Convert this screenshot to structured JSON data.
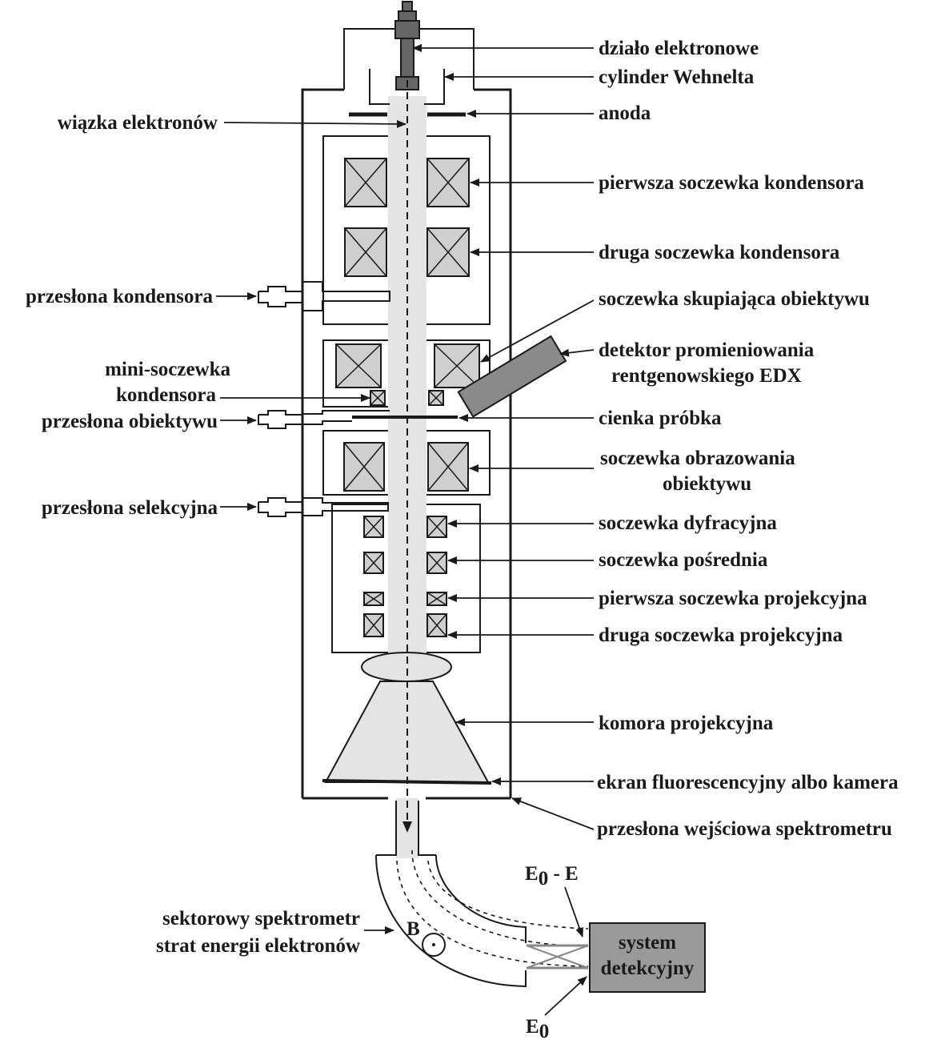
{
  "labels": {
    "gun": "działo elektronowe",
    "wehnelt": "cylinder Wehnelta",
    "beam": "wiązka elektronów",
    "anode": "anoda",
    "condenser1": "pierwsza soczewka kondensora",
    "condenser2": "druga soczewka kondensora",
    "condenser_aperture": "przesłona kondensora",
    "objective_focusing": "soczewka skupiająca obiektywu",
    "edx_line1": "detektor promieniowania",
    "edx_line2": "rentgenowskiego EDX",
    "minilens_line1": "mini-soczewka",
    "minilens_line2": "kondensora",
    "objective_aperture": "przesłona obiektywu",
    "thin_sample": "cienka próbka",
    "objective_imaging_line1": "soczewka obrazowania",
    "objective_imaging_line2": "obiektywu",
    "selective_aperture": "przesłona selekcyjna",
    "diffraction_lens": "soczewka dyfracyjna",
    "intermediate_lens": "soczewka pośrednia",
    "projection1": "pierwsza soczewka projekcyjna",
    "projection2": "druga soczewka projekcyjna",
    "projection_chamber": "komora projekcyjna",
    "screen": "ekran fluorescencyjny albo kamera",
    "spectrometer_aperture": "przesłona wejściowa spektrometru",
    "spectrometer_line1": "sektorowy spektrometr",
    "spectrometer_line2": "strat energii elektronów",
    "field_b": "B",
    "energy_loss_e0": "E",
    "energy_loss_sub": "0",
    "energy_loss_rest": " - E",
    "energy_e0": "E",
    "energy_e0_sub": "0",
    "detection_line1": "system",
    "detection_line2": "detekcyjny"
  },
  "colors": {
    "line": "#1a1a1a",
    "coil_fill": "#cfcfcf",
    "beam_fill": "#e4e4e4",
    "detection_box": "#9a9a9a"
  }
}
